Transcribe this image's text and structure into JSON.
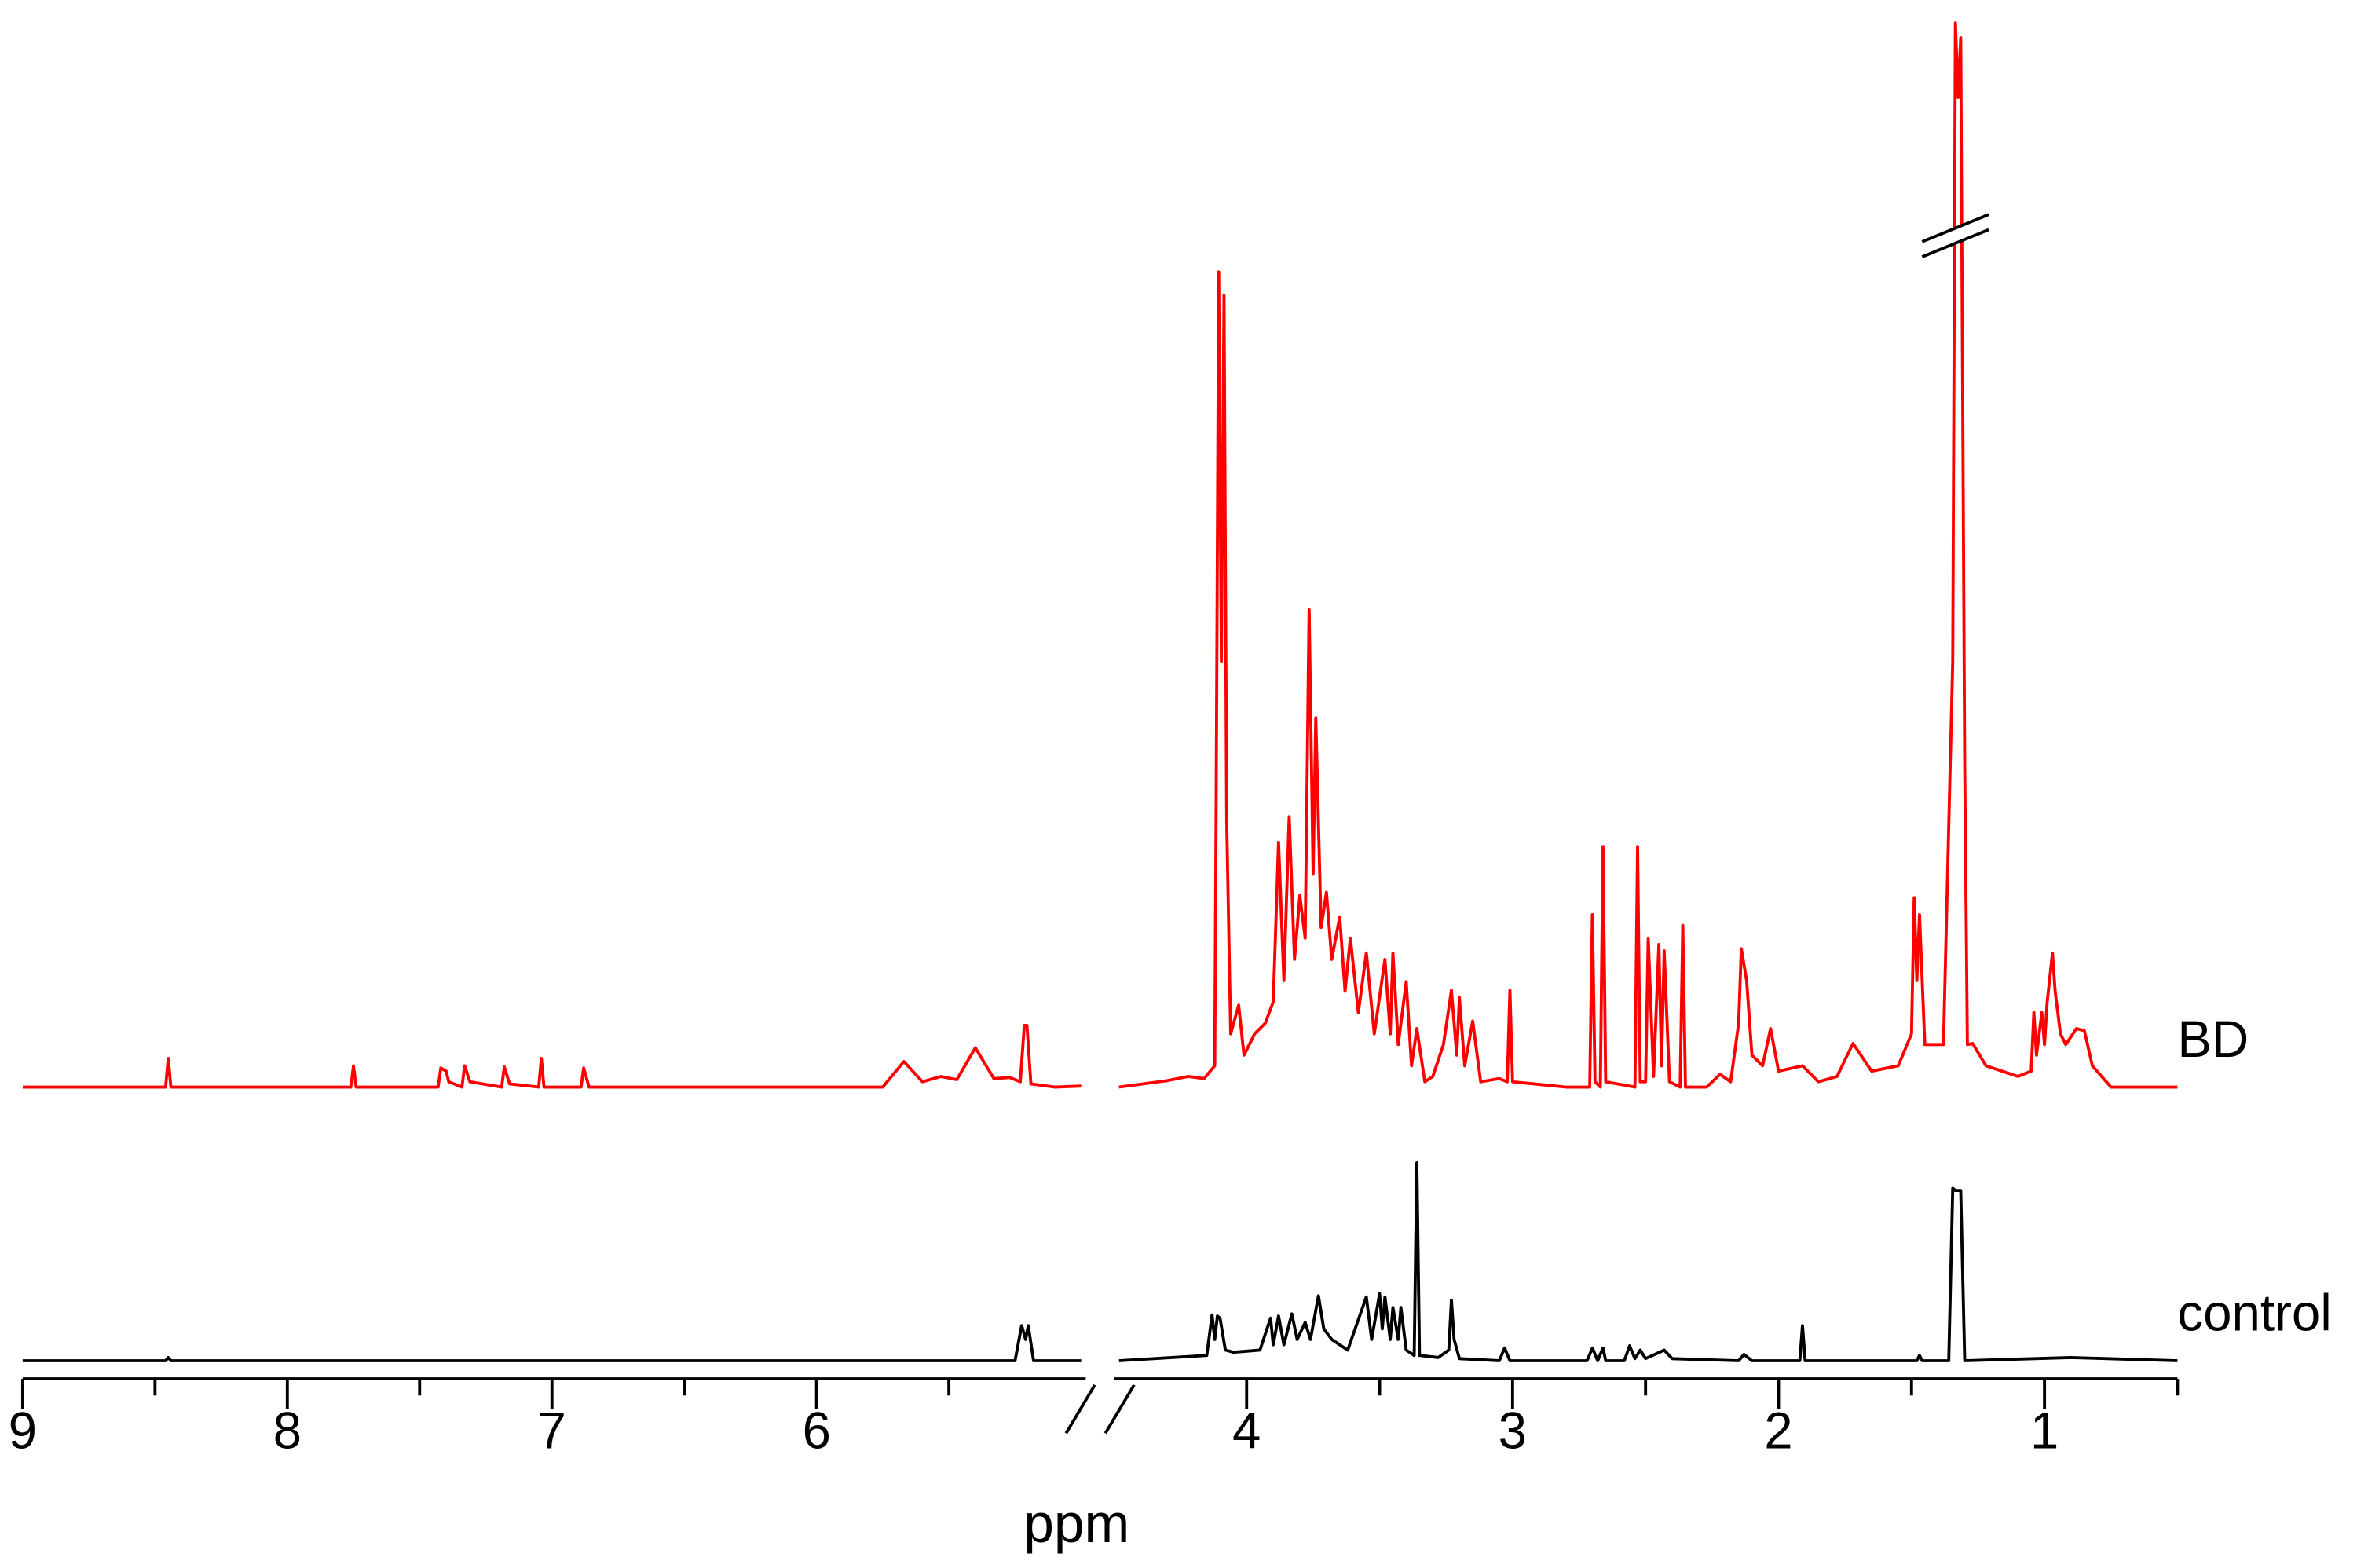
{
  "chart_data": {
    "type": "line",
    "x_label": "ppm",
    "xlim": [
      9,
      0.5
    ],
    "xbreak": [
      5.0,
      4.48
    ],
    "xticks": [
      9,
      8,
      7,
      6,
      4,
      3,
      2,
      1
    ],
    "xminorticks": [
      8.5,
      7.5,
      6.5,
      5.5,
      3.5,
      2.5,
      1.5,
      0.5
    ],
    "ylim": [
      0,
      100
    ],
    "ybreak": true,
    "series": [
      {
        "name": "BD",
        "color": "#ff0000",
        "x": [
          9.0,
          8.46,
          8.45,
          8.44,
          7.76,
          7.75,
          7.74,
          7.43,
          7.42,
          7.4,
          7.39,
          7.34,
          7.33,
          7.31,
          7.19,
          7.18,
          7.16,
          7.05,
          7.04,
          7.03,
          6.89,
          6.88,
          6.86,
          5.75,
          5.67,
          5.6,
          5.53,
          5.47,
          5.4,
          5.33,
          5.27,
          5.23,
          5.215,
          5.205,
          5.19,
          5.1,
          5.0,
          4.7,
          4.48,
          4.3,
          4.22,
          4.16,
          4.12,
          4.115,
          4.105,
          4.095,
          4.085,
          4.075,
          4.06,
          4.03,
          4.01,
          3.97,
          3.93,
          3.9,
          3.88,
          3.86,
          3.84,
          3.82,
          3.8,
          3.78,
          3.765,
          3.75,
          3.74,
          3.72,
          3.7,
          3.68,
          3.65,
          3.63,
          3.61,
          3.58,
          3.55,
          3.52,
          3.48,
          3.46,
          3.45,
          3.43,
          3.4,
          3.38,
          3.36,
          3.33,
          3.3,
          3.26,
          3.23,
          3.21,
          3.2,
          3.18,
          3.15,
          3.12,
          3.05,
          3.02,
          3.01,
          3.0,
          2.92,
          2.8,
          2.71,
          2.7,
          2.69,
          2.67,
          2.66,
          2.65,
          2.54,
          2.53,
          2.52,
          2.5,
          2.49,
          2.47,
          2.45,
          2.44,
          2.43,
          2.41,
          2.37,
          2.36,
          2.35,
          2.27,
          2.22,
          2.18,
          2.15,
          2.14,
          2.12,
          2.1,
          2.06,
          2.03,
          2.0,
          1.91,
          1.85,
          1.78,
          1.72,
          1.65,
          1.55,
          1.5,
          1.49,
          1.48,
          1.47,
          1.45,
          1.38,
          1.345,
          1.335,
          1.325,
          1.315,
          1.3,
          1.29,
          1.27,
          1.22,
          1.1,
          1.05,
          1.04,
          1.03,
          1.01,
          1.0,
          0.99,
          0.97,
          0.96,
          0.94,
          0.92,
          0.88,
          0.85,
          0.82,
          0.75,
          0.5
        ],
        "values": [
          0,
          0,
          2.7,
          0,
          0,
          2.0,
          0,
          0,
          1.8,
          1.5,
          0.5,
          0,
          2.0,
          0.5,
          0,
          1.9,
          0.3,
          0,
          2.7,
          0,
          0,
          1.8,
          0,
          0,
          2.4,
          0.5,
          1.0,
          0.7,
          3.7,
          0.8,
          0.9,
          0.5,
          5.8,
          5.8,
          0.3,
          0,
          0.1,
          null,
          0,
          0.6,
          1.0,
          0.8,
          2,
          25,
          76.6,
          40,
          74.4,
          25,
          5,
          7.7,
          3,
          5,
          6,
          8,
          23,
          10,
          25.4,
          12,
          18,
          14,
          44.9,
          20,
          34.7,
          15,
          18.3,
          12,
          16,
          9,
          14,
          7,
          12.6,
          5,
          12,
          5,
          12.6,
          4,
          9.9,
          2,
          5.5,
          0.5,
          1,
          4,
          9.1,
          3,
          8.4,
          2,
          6.2,
          0.5,
          0.8,
          0.5,
          9.1,
          0.5,
          0.3,
          0,
          0,
          16.2,
          0.5,
          0,
          22.6,
          0.5,
          0,
          22.6,
          0.5,
          0.5,
          14,
          1,
          13.4,
          2,
          12.8,
          0.5,
          0,
          15.2,
          0,
          0,
          1.2,
          0.5,
          6,
          13,
          10,
          3,
          2,
          5.5,
          1.5,
          2,
          0.5,
          1,
          4.1,
          1.5,
          2,
          5,
          17.8,
          10,
          16.2,
          4,
          4,
          40,
          100,
          93,
          98.6,
          30,
          4,
          4.1,
          2,
          1,
          1.5,
          7,
          3,
          7,
          4,
          8,
          12.6,
          9,
          5,
          4,
          5.5,
          5.3,
          2,
          0,
          0
        ]
      },
      {
        "name": "control",
        "color": "#000000",
        "x": [
          9.0,
          8.46,
          8.45,
          8.44,
          5.25,
          5.225,
          5.21,
          5.2,
          5.18,
          5.0,
          4.7,
          4.48,
          4.15,
          4.13,
          4.12,
          4.11,
          4.1,
          4.08,
          4.05,
          3.95,
          3.91,
          3.9,
          3.88,
          3.86,
          3.83,
          3.81,
          3.78,
          3.76,
          3.73,
          3.71,
          3.68,
          3.62,
          3.55,
          3.53,
          3.5,
          3.49,
          3.48,
          3.46,
          3.45,
          3.43,
          3.42,
          3.4,
          3.37,
          3.36,
          3.35,
          3.28,
          3.24,
          3.23,
          3.22,
          3.2,
          3.05,
          3.03,
          3.01,
          2.72,
          2.7,
          2.68,
          2.66,
          2.65,
          2.58,
          2.56,
          2.54,
          2.52,
          2.5,
          2.43,
          2.4,
          2.15,
          2.13,
          2.1,
          1.92,
          1.91,
          1.9,
          1.48,
          1.47,
          1.46,
          1.36,
          1.345,
          1.335,
          1.325,
          1.315,
          1.3,
          0.9,
          0.5
        ],
        "values": [
          0,
          0,
          0.3,
          0,
          0,
          3.3,
          2,
          3.3,
          0,
          0,
          null,
          0,
          0.5,
          4.3,
          2,
          4.2,
          4,
          1,
          0.8,
          1,
          4,
          1.5,
          4.2,
          1.5,
          4.4,
          2,
          3.6,
          2,
          6.1,
          3,
          2,
          1,
          6,
          2,
          6.3,
          3,
          6,
          2,
          5,
          2,
          5,
          1,
          0.5,
          18.6,
          0.5,
          0.3,
          1,
          5.7,
          2,
          0.2,
          0,
          1.2,
          0,
          0,
          1.2,
          0,
          1.2,
          0,
          0,
          1.4,
          0.2,
          1,
          0.2,
          1,
          0.2,
          0,
          0.6,
          0,
          0,
          3.3,
          0,
          0,
          0.5,
          0,
          0,
          16.2,
          16,
          16,
          16,
          0,
          0.3,
          0
        ]
      }
    ]
  }
}
